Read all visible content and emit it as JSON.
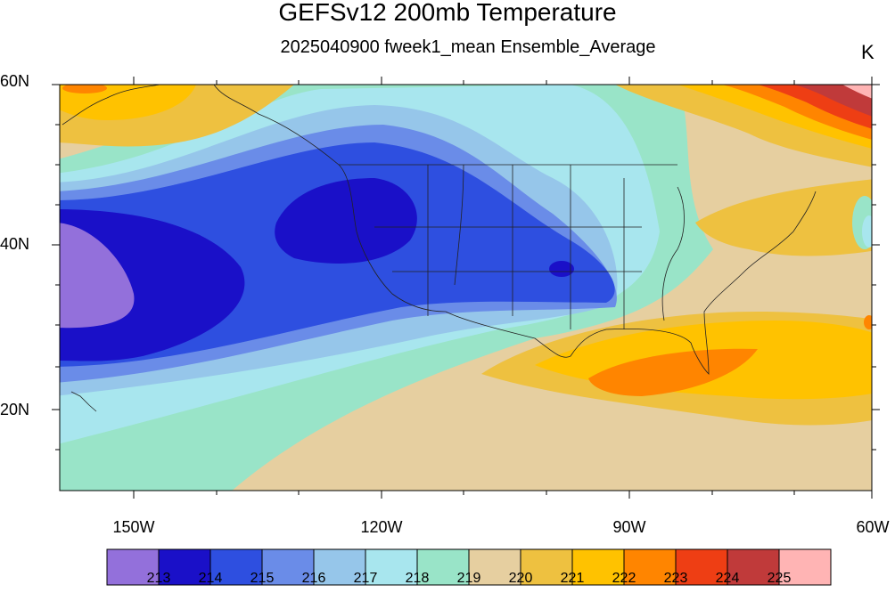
{
  "title": "GEFSv12 200mb Temperature",
  "subtitle": "2025040900 fweek1_mean Ensemble_Average",
  "units": "K",
  "lat_labels": [
    "60N",
    "40N",
    "20N"
  ],
  "lon_labels": [
    "150W",
    "120W",
    "90W",
    "60W"
  ],
  "colorbar": {
    "colors": [
      "#9370DB",
      "#1A10C8",
      "#2E4FE0",
      "#6A8CE8",
      "#96C6EA",
      "#A8E6EE",
      "#99E4C8",
      "#E6CFA0",
      "#EEC140",
      "#FFC200",
      "#FF8500",
      "#EE3E14",
      "#C03A3A",
      "#FFB4B4"
    ],
    "labels": [
      "213",
      "214",
      "215",
      "216",
      "217",
      "218",
      "219",
      "220",
      "221",
      "222",
      "223",
      "224",
      "225"
    ]
  }
}
